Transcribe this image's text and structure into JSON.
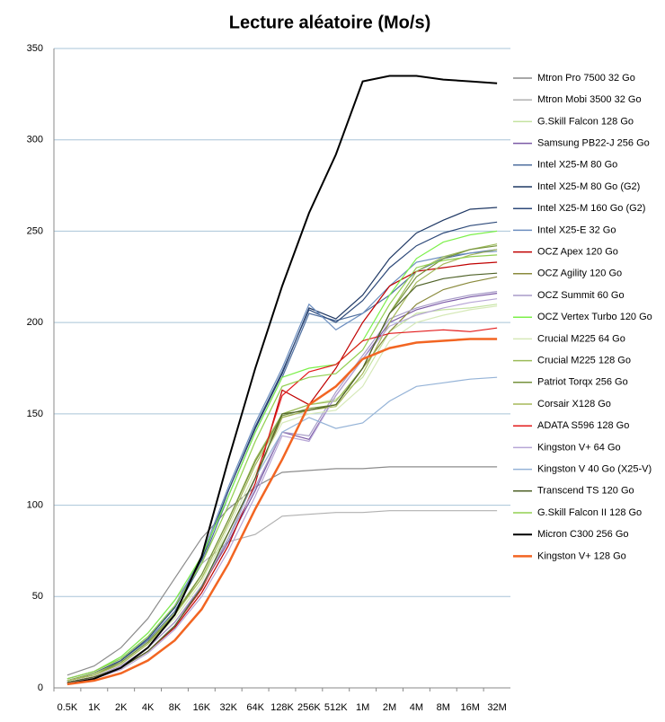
{
  "chart_data": {
    "type": "line",
    "title": "Lecture aléatoire (Mo/s)",
    "categories": [
      "0.5K",
      "1K",
      "2K",
      "4K",
      "8K",
      "16K",
      "32K",
      "64K",
      "128K",
      "256K",
      "512K",
      "1M",
      "2M",
      "4M",
      "8M",
      "16M",
      "32M"
    ],
    "ylim": [
      0,
      350
    ],
    "yticks": [
      0,
      50,
      100,
      150,
      200,
      250,
      300,
      350
    ],
    "grid": true,
    "legend": "right",
    "series": [
      {
        "name": "Mtron Pro 7500 32 Go",
        "color": "#8c8c8c",
        "values": [
          7,
          12,
          22,
          38,
          60,
          82,
          98,
          110,
          118,
          119,
          120,
          120,
          121,
          121,
          121,
          121,
          121
        ]
      },
      {
        "name": "Mtron Mobi 3500 32 Go",
        "color": "#b0b0b0",
        "values": [
          5,
          9,
          17,
          30,
          48,
          68,
          80,
          84,
          94,
          95,
          96,
          96,
          97,
          97,
          97,
          97,
          97
        ]
      },
      {
        "name": "G.Skill Falcon 128 Go",
        "color": "#c4e3a0",
        "values": [
          4,
          8,
          14,
          25,
          40,
          60,
          85,
          115,
          150,
          155,
          158,
          170,
          195,
          205,
          207,
          208,
          210
        ]
      },
      {
        "name": "Samsung PB22-J 256 Go",
        "color": "#7b5aa6",
        "values": [
          3,
          6,
          12,
          22,
          36,
          55,
          80,
          108,
          140,
          136,
          160,
          180,
          200,
          207,
          211,
          214,
          216
        ]
      },
      {
        "name": "Intel X25-M 80 Go",
        "color": "#4f6f9f",
        "values": [
          4,
          8,
          15,
          26,
          42,
          68,
          105,
          140,
          170,
          205,
          201,
          205,
          215,
          228,
          235,
          238,
          240
        ]
      },
      {
        "name": "Intel X25-M 80 Go (G2)",
        "color": "#1f3864",
        "values": [
          4,
          8,
          15,
          27,
          44,
          70,
          108,
          142,
          172,
          208,
          202,
          215,
          235,
          249,
          256,
          262,
          263
        ]
      },
      {
        "name": "Intel X25-M 160 Go (G2)",
        "color": "#2e4a7a",
        "values": [
          4,
          8,
          15,
          27,
          44,
          70,
          108,
          143,
          173,
          207,
          200,
          212,
          230,
          242,
          249,
          253,
          255
        ]
      },
      {
        "name": "Intel X25-E 32 Go",
        "color": "#6c8ebf",
        "values": [
          5,
          9,
          16,
          28,
          45,
          72,
          110,
          145,
          175,
          210,
          196,
          205,
          220,
          233,
          236,
          238,
          239
        ]
      },
      {
        "name": "OCZ Apex 120 Go",
        "color": "#c00000",
        "values": [
          3,
          6,
          11,
          20,
          33,
          52,
          78,
          112,
          163,
          155,
          175,
          200,
          220,
          228,
          230,
          232,
          233
        ]
      },
      {
        "name": "OCZ Agility 120 Go",
        "color": "#8a8a3c",
        "values": [
          3,
          6,
          11,
          20,
          34,
          55,
          85,
          115,
          148,
          152,
          155,
          175,
          195,
          210,
          218,
          222,
          225
        ]
      },
      {
        "name": "OCZ Summit 60 Go",
        "color": "#a89cc8",
        "values": [
          3,
          6,
          12,
          22,
          36,
          56,
          82,
          110,
          140,
          138,
          162,
          182,
          202,
          208,
          212,
          215,
          217
        ]
      },
      {
        "name": "OCZ Vertex Turbo 120 Go",
        "color": "#7cf04a",
        "values": [
          5,
          9,
          17,
          30,
          48,
          72,
          105,
          140,
          170,
          175,
          177,
          190,
          215,
          235,
          244,
          248,
          250
        ]
      },
      {
        "name": "Crucial M225 64 Go",
        "color": "#d6e9b8",
        "values": [
          4,
          7,
          13,
          24,
          38,
          58,
          88,
          118,
          145,
          150,
          152,
          165,
          190,
          200,
          204,
          207,
          209
        ]
      },
      {
        "name": "Crucial M225 128 Go",
        "color": "#9bbb59",
        "values": [
          4,
          8,
          14,
          25,
          41,
          62,
          92,
          125,
          150,
          155,
          157,
          175,
          205,
          228,
          236,
          240,
          243
        ]
      },
      {
        "name": "Patriot Torqx 256 Go",
        "color": "#76923c",
        "values": [
          4,
          7,
          14,
          25,
          40,
          62,
          92,
          124,
          149,
          153,
          155,
          175,
          205,
          225,
          235,
          240,
          242
        ]
      },
      {
        "name": "Corsair X128 Go",
        "color": "#a5b85a",
        "values": [
          4,
          7,
          13,
          24,
          40,
          60,
          90,
          122,
          148,
          152,
          154,
          172,
          200,
          222,
          232,
          237,
          240
        ]
      },
      {
        "name": "ADATA S596 128 Go",
        "color": "#e31b1b",
        "values": [
          3,
          6,
          11,
          20,
          34,
          54,
          82,
          115,
          160,
          173,
          177,
          190,
          194,
          195,
          196,
          195,
          197
        ]
      },
      {
        "name": "Kingston V+ 64 Go",
        "color": "#b7a6d6",
        "values": [
          3,
          5,
          10,
          19,
          32,
          50,
          75,
          105,
          138,
          135,
          160,
          180,
          198,
          204,
          208,
          211,
          213
        ]
      },
      {
        "name": "Kingston V 40 Go (X25-V)",
        "color": "#95b3d7",
        "values": [
          3,
          6,
          11,
          20,
          34,
          55,
          82,
          115,
          140,
          148,
          142,
          145,
          157,
          165,
          167,
          169,
          170
        ]
      },
      {
        "name": "Transcend TS 120 Go",
        "color": "#4f6228",
        "values": [
          3,
          6,
          11,
          20,
          34,
          55,
          85,
          115,
          150,
          152,
          155,
          175,
          205,
          220,
          224,
          226,
          227
        ]
      },
      {
        "name": "G.Skill Falcon II 128 Go",
        "color": "#92d050",
        "values": [
          5,
          9,
          16,
          28,
          45,
          68,
          100,
          135,
          165,
          170,
          172,
          185,
          210,
          230,
          234,
          236,
          237
        ]
      },
      {
        "name": "Micron C300 256 Go",
        "color": "#000000",
        "width": 2,
        "values": [
          2,
          5,
          11,
          22,
          40,
          72,
          125,
          175,
          220,
          260,
          292,
          332,
          335,
          335,
          333,
          332,
          331
        ]
      },
      {
        "name": "Kingston V+ 128 Go",
        "color": "#f26522",
        "width": 2.5,
        "values": [
          2,
          4,
          8,
          15,
          26,
          43,
          68,
          98,
          125,
          155,
          165,
          180,
          186,
          189,
          190,
          191,
          191
        ]
      }
    ]
  }
}
